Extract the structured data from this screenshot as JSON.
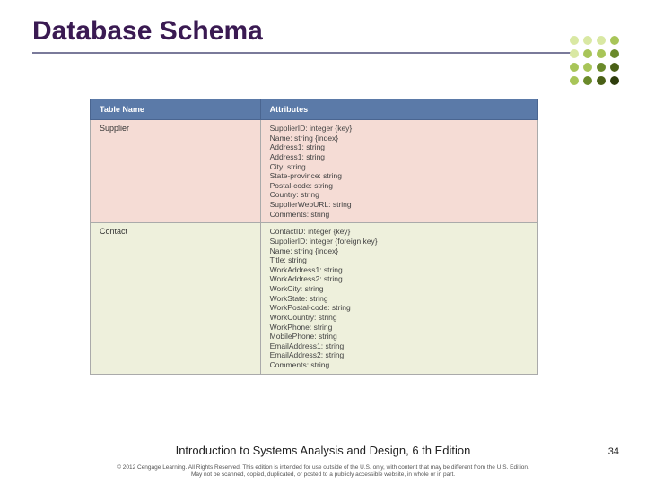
{
  "title": "Database Schema",
  "dots": {
    "colors": [
      "#d9e8a3",
      "#d9e8a3",
      "#d9e8a3",
      "#a8c558",
      "#d9e8a3",
      "#a8c558",
      "#a8c558",
      "#6a8a2a",
      "#a8c558",
      "#a8c558",
      "#6a8a2a",
      "#4a6016",
      "#a8c558",
      "#6a8a2a",
      "#4a6016",
      "#2e3d0c"
    ]
  },
  "table": {
    "headers": {
      "name": "Table Name",
      "attrs": "Attributes"
    },
    "rows": [
      {
        "rowClass": "row-supplier",
        "name": "Supplier",
        "attrs": [
          "SupplierID: integer {key}",
          "Name: string {index}",
          "Address1: string",
          "Address1: string",
          "City: string",
          "State-province: string",
          "Postal-code: string",
          "Country: string",
          "SupplierWebURL: string",
          "Comments: string"
        ]
      },
      {
        "rowClass": "row-contact",
        "name": "Contact",
        "attrs": [
          "ContactID: integer {key}",
          "SupplierID: integer {foreign key}",
          "Name: string {index}",
          "Title: string",
          "WorkAddress1: string",
          "WorkAddress2: string",
          "WorkCity: string",
          "WorkState: string",
          "WorkPostal-code: string",
          "WorkCountry: string",
          "WorkPhone: string",
          "MobilePhone: string",
          "EmailAddress1: string",
          "EmailAddress2: string",
          "Comments: string"
        ]
      }
    ]
  },
  "footer": "Introduction to Systems Analysis and Design, 6 th Edition",
  "pagenum": "34",
  "copyright_line1": "© 2012 Cengage Learning. All Rights Reserved. This edition is intended for use outside of the U.S. only, with content that may be different from the U.S. Edition.",
  "copyright_line2": "May not be scanned, copied, duplicated, or posted to a publicly accessible website, in whole or in part."
}
